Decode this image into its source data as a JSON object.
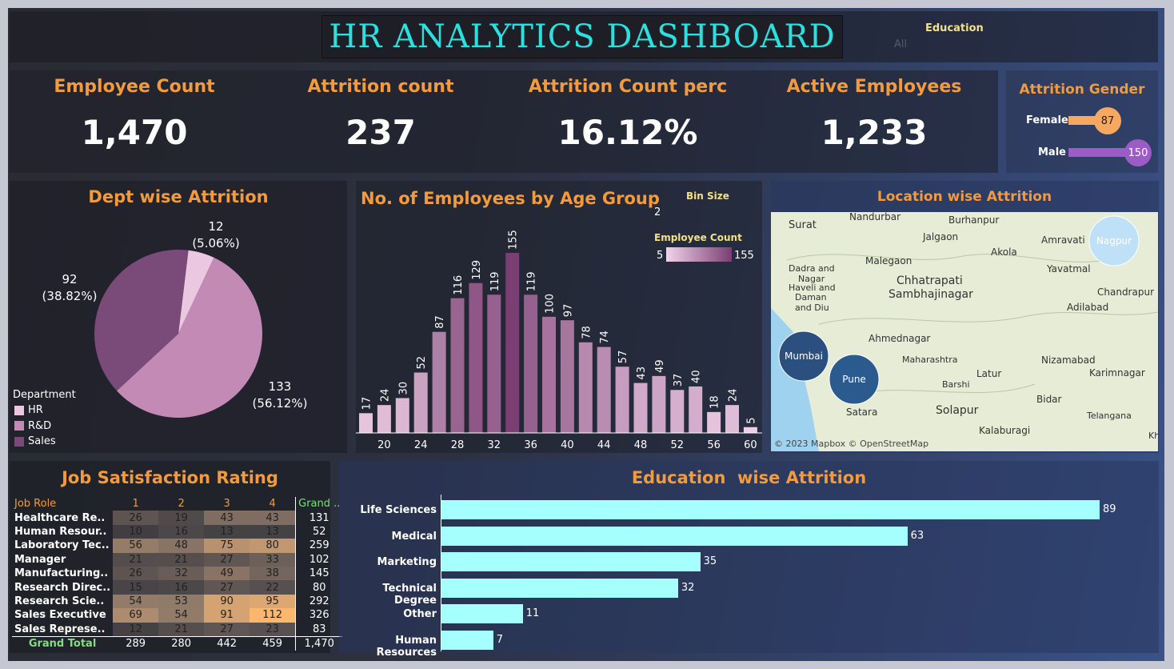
{
  "header": {
    "title": "HR ANALYTICS DASHBOARD",
    "filter_label": "Education",
    "filter_value": "All"
  },
  "kpis": [
    {
      "label": "Employee Count",
      "value": "1,470"
    },
    {
      "label": "Attrition count",
      "value": "237"
    },
    {
      "label": "Attrition Count perc",
      "value": "16.12%"
    },
    {
      "label": "Active Employees",
      "value": "1,233"
    }
  ],
  "gender": {
    "title": "Attrition Gender",
    "items": [
      {
        "label": "Female",
        "value": 87,
        "color": "#f7a860"
      },
      {
        "label": "Male",
        "value": 150,
        "color": "#9c5bc6"
      }
    ]
  },
  "dept": {
    "title": "Dept wise Attrition",
    "legend_title": "Department"
  },
  "age": {
    "title": "No. of Employees by Age Group",
    "bin_label": "Bin Size",
    "bin_value": "2",
    "legend_label": "Employee Count",
    "legend_min": "5",
    "legend_max": "155"
  },
  "location": {
    "title": "Location wise Attrition",
    "credit": "© 2023 Mapbox © OpenStreetMap",
    "places": [
      "Surat",
      "Nandurbar",
      "Burhanpur",
      "Jalgaon",
      "Amravati",
      "Nagpur",
      "Akola",
      "Malegaon",
      "Yavatmal",
      "Dadra and",
      "Nagar",
      "Haveli and",
      "Daman",
      "and Diu",
      "Chhatrapati",
      "Sambhajinagar",
      "Chandrapur",
      "Adilabad",
      "Ahmednagar",
      "Mumbai",
      "Maharashtra",
      "Nizamabad",
      "Pune",
      "Karimnagar",
      "Latur",
      "Barshi",
      "Satara",
      "Solapur",
      "Bidar",
      "Telangana",
      "Kalaburagi",
      "Kh"
    ],
    "bubbles": [
      "Mumbai",
      "Pune",
      "Nagpur"
    ]
  },
  "job": {
    "title": "Job Satisfaction Rating",
    "columns": [
      "Job Role",
      "1",
      "2",
      "3",
      "4",
      "Grand .."
    ],
    "rows": [
      [
        "Healthcare Re..",
        "26",
        "19",
        "43",
        "43",
        "131"
      ],
      [
        "Human Resour..",
        "10",
        "16",
        "13",
        "13",
        "52"
      ],
      [
        "Laboratory Tec..",
        "56",
        "48",
        "75",
        "80",
        "259"
      ],
      [
        "Manager",
        "21",
        "21",
        "27",
        "33",
        "102"
      ],
      [
        "Manufacturing..",
        "26",
        "32",
        "49",
        "38",
        "145"
      ],
      [
        "Research Direc..",
        "15",
        "16",
        "27",
        "22",
        "80"
      ],
      [
        "Research Scie..",
        "54",
        "53",
        "90",
        "95",
        "292"
      ],
      [
        "Sales Executive",
        "69",
        "54",
        "91",
        "112",
        "326"
      ],
      [
        "Sales Represe..",
        "12",
        "21",
        "27",
        "23",
        "83"
      ]
    ],
    "total": [
      "Grand Total",
      "289",
      "280",
      "442",
      "459",
      "1,470"
    ]
  },
  "edu": {
    "title": "Education  wise Attrition"
  },
  "chart_data": [
    {
      "type": "pie",
      "title": "Dept wise Attrition",
      "legend_title": "Department",
      "slices": [
        {
          "name": "HR",
          "value": 12,
          "pct": "(5.06%)",
          "color": "#ecc7e2"
        },
        {
          "name": "R&D",
          "value": 133,
          "pct": "(56.12%)",
          "color": "#c28ab4"
        },
        {
          "name": "Sales",
          "value": 92,
          "pct": "(38.82%)",
          "color": "#7a4b78"
        }
      ]
    },
    {
      "type": "bar",
      "title": "No. of Employees by Age Group",
      "x": [
        18,
        20,
        22,
        24,
        26,
        28,
        30,
        32,
        34,
        36,
        38,
        40,
        42,
        44,
        46,
        48,
        50,
        52,
        54,
        56,
        58,
        60
      ],
      "values": [
        17,
        24,
        30,
        52,
        87,
        116,
        129,
        119,
        155,
        119,
        100,
        97,
        78,
        74,
        57,
        43,
        49,
        37,
        40,
        18,
        24,
        5
      ],
      "xticks": [
        20,
        24,
        28,
        32,
        36,
        40,
        44,
        48,
        52,
        56,
        60
      ],
      "ylim": [
        0,
        155
      ]
    },
    {
      "type": "bar",
      "title": "Education  wise Attrition",
      "orientation": "horizontal",
      "categories": [
        "Life Sciences",
        "Medical",
        "Marketing",
        "Technical Degree",
        "Other",
        "Human Resources"
      ],
      "values": [
        89,
        63,
        35,
        32,
        11,
        7
      ],
      "color": "#a5fffd"
    }
  ]
}
